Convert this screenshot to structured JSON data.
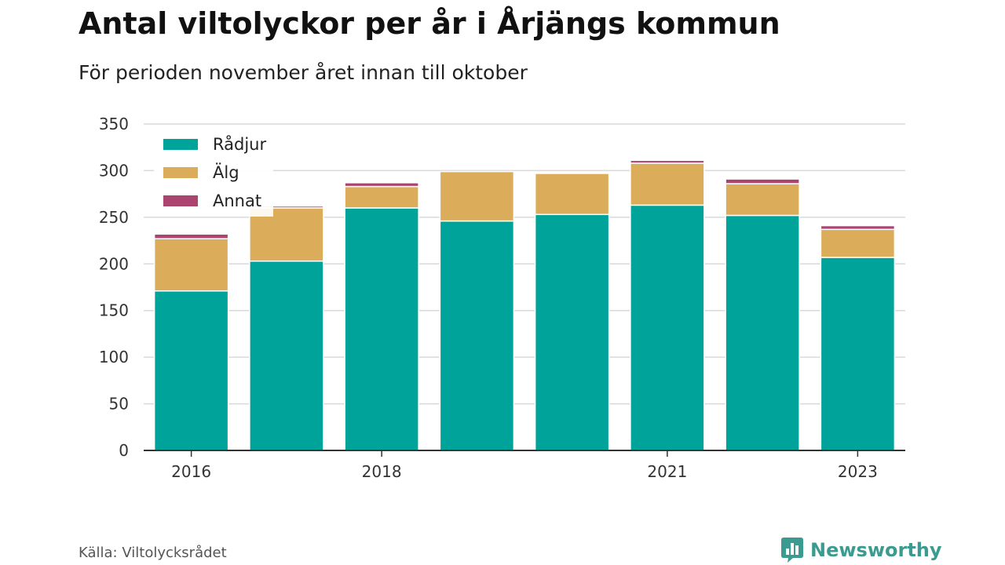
{
  "header": {
    "title": "Antal viltolyckor per år i Årjängs kommun",
    "subtitle": "För perioden november året innan till oktober"
  },
  "footer": {
    "source": "Källa: Viltolycksrådet",
    "brand": "Newsworthy",
    "brand_icon": "bar-chart-badge-icon"
  },
  "chart_data": {
    "type": "bar",
    "stacked": true,
    "categories": [
      "2016",
      "2017",
      "2018",
      "2019",
      "2020",
      "2021",
      "2022",
      "2023"
    ],
    "x_tick_labels": [
      "2016",
      "",
      "2018",
      "",
      "",
      "2021",
      "",
      "2023"
    ],
    "series": [
      {
        "name": "Rådjur",
        "color": "#00a39a",
        "values": [
          171,
          203,
          260,
          246,
          253,
          263,
          252,
          207
        ]
      },
      {
        "name": "Älg",
        "color": "#dbad5a",
        "values": [
          56,
          57,
          23,
          53,
          44,
          45,
          34,
          30
        ]
      },
      {
        "name": "Annat",
        "color": "#ab456f",
        "values": [
          5,
          2,
          4,
          0,
          0,
          3,
          5,
          4
        ]
      }
    ],
    "ylim": [
      0,
      350
    ],
    "yticks": [
      0,
      50,
      100,
      150,
      200,
      250,
      300,
      350
    ],
    "grid": true,
    "legend_position": "top-left"
  }
}
